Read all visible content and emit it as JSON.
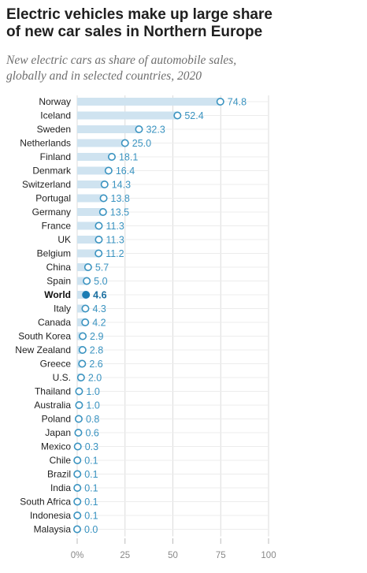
{
  "header": {
    "title": "Electric vehicles make up large share\nof new car sales in Northern Europe",
    "subtitle": "New electric cars as share of automobile sales,\nglobally and in selected countries, 2020"
  },
  "colors": {
    "bar": "#cfe3f0",
    "marker": "#3a93c0",
    "highlight": "#1b7cb3",
    "grid": "#dcdcdc"
  },
  "chart_data": {
    "type": "dot-bar",
    "title": "Electric vehicles make up large share of new car sales in Northern Europe",
    "subtitle": "New electric cars as share of automobile sales, globally and in selected countries, 2020",
    "categories": [
      "Norway",
      "Iceland",
      "Sweden",
      "Netherlands",
      "Finland",
      "Denmark",
      "Switzerland",
      "Portugal",
      "Germany",
      "France",
      "UK",
      "Belgium",
      "China",
      "Spain",
      "World",
      "Italy",
      "Canada",
      "South Korea",
      "New Zealand",
      "Greece",
      "U.S.",
      "Thailand",
      "Australia",
      "Poland",
      "Japan",
      "Mexico",
      "Chile",
      "Brazil",
      "India",
      "South Africa",
      "Indonesia",
      "Malaysia"
    ],
    "values": [
      74.8,
      52.4,
      32.3,
      25.0,
      18.1,
      16.4,
      14.3,
      13.8,
      13.5,
      11.3,
      11.3,
      11.2,
      5.7,
      5.0,
      4.6,
      4.3,
      4.2,
      2.9,
      2.8,
      2.6,
      2.0,
      1.0,
      1.0,
      0.8,
      0.6,
      0.3,
      0.1,
      0.1,
      0.1,
      0.1,
      0.1,
      0.0
    ],
    "value_labels": [
      "74.8",
      "52.4",
      "32.3",
      "25.0",
      "18.1",
      "16.4",
      "14.3",
      "13.8",
      "13.5",
      "11.3",
      "11.3",
      "11.2",
      "5.7",
      "5.0",
      "4.6",
      "4.3",
      "4.2",
      "2.9",
      "2.8",
      "2.6",
      "2.0",
      "1.0",
      "1.0",
      "0.8",
      "0.6",
      "0.3",
      "0.1",
      "0.1",
      "0.1",
      "0.1",
      "0.1",
      "0.0"
    ],
    "highlight": "World",
    "xlim": [
      0,
      100
    ],
    "xticks": [
      0,
      25,
      50,
      75,
      100
    ],
    "xtick_labels": [
      "0%",
      "25",
      "50",
      "75",
      "100"
    ],
    "grid": true
  }
}
